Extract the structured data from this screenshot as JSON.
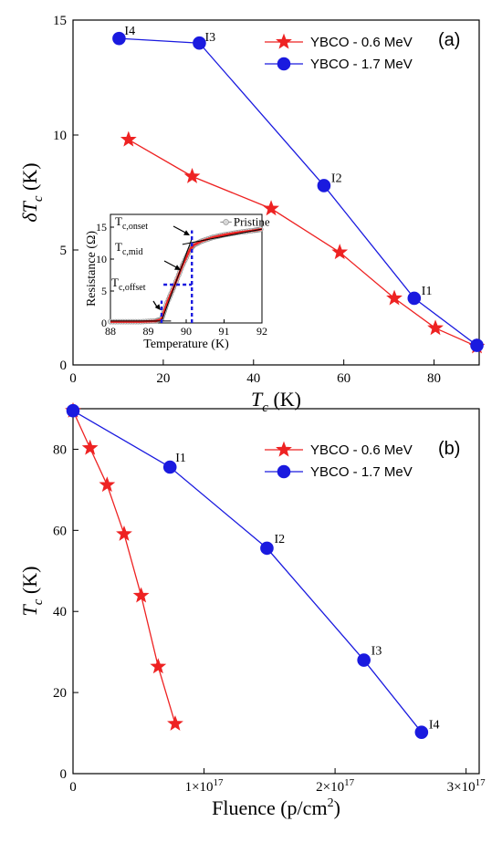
{
  "colors": {
    "red": "#ee2222",
    "blue": "#1a1adf",
    "inset_black": "#000000",
    "inset_blue": "#1a1adf",
    "inset_red": "#ee2222",
    "inset_gray": "#888888"
  },
  "chart_data": [
    {
      "id": "a",
      "type": "line",
      "panel_label": "(a)",
      "xlabel": {
        "main": "T",
        "sub": "c",
        "unit": " (K)"
      },
      "ylabel": {
        "prefix": "δ",
        "main": "T",
        "sub": "c",
        "unit": " (K)"
      },
      "xlim": [
        0,
        90
      ],
      "ylim": [
        0,
        15
      ],
      "x_ticks": [
        0,
        20,
        40,
        60,
        80
      ],
      "y_ticks": [
        0,
        5,
        10,
        15
      ],
      "legend_position": "top-right",
      "series": [
        {
          "name": "YBCO - 0.6 MeV",
          "color": "red",
          "marker": "star",
          "x": [
            12.3,
            26.4,
            43.9,
            59.1,
            71.2,
            80.3,
            89.5
          ],
          "y": [
            9.8,
            8.2,
            6.8,
            4.9,
            2.9,
            1.6,
            0.8
          ],
          "point_labels": [
            "",
            "",
            "",
            "",
            "",
            "",
            ""
          ]
        },
        {
          "name": "YBCO - 1.7 MeV",
          "color": "blue",
          "marker": "circle",
          "x": [
            10.2,
            28.0,
            55.6,
            75.6,
            89.5
          ],
          "y": [
            14.2,
            14.0,
            7.8,
            2.9,
            0.85
          ],
          "point_labels": [
            "I4",
            "I3",
            "I2",
            "I1",
            ""
          ]
        }
      ],
      "inset": {
        "type": "line",
        "xlabel": "Temperature (K)",
        "ylabel": "Resistance (Ω)",
        "xlim": [
          88,
          92
        ],
        "ylim": [
          0,
          17
        ],
        "x_ticks": [
          88,
          89,
          90,
          91,
          92
        ],
        "y_ticks": [
          0,
          5,
          10,
          15
        ],
        "legend": "Pristine",
        "annotations": [
          {
            "main": "T",
            "sub": "c,onset"
          },
          {
            "main": "T",
            "sub": "c,mid"
          },
          {
            "main": "T",
            "sub": "c,offset"
          }
        ],
        "onset_T": 90.15,
        "mid_T": 89.75,
        "offset_T": 89.35,
        "onset_R": 12.0,
        "mid_R": 6.0,
        "curve": {
          "x": [
            88.0,
            88.4,
            88.8,
            89.2,
            89.35,
            89.5,
            89.7,
            89.9,
            90.1,
            90.2,
            90.4,
            90.7,
            91.0,
            91.4,
            91.8,
            92.0
          ],
          "y": [
            0.2,
            0.2,
            0.2,
            0.3,
            0.6,
            3.2,
            6.0,
            9.0,
            11.5,
            12.2,
            12.8,
            13.4,
            13.8,
            14.2,
            14.5,
            14.7
          ]
        }
      }
    },
    {
      "id": "b",
      "type": "line",
      "panel_label": "(b)",
      "xlabel": {
        "main": "Fluence (p/cm",
        "sup": "2",
        "unit": ")"
      },
      "ylabel": {
        "prefix": "",
        "main": "T",
        "sub": "c",
        "unit": " (K)"
      },
      "xlim": [
        0,
        3.1
      ],
      "ylim": [
        0,
        90
      ],
      "x_ticks": [
        1,
        2,
        3
      ],
      "x_tick_labels": [
        {
          "base": "1×10",
          "exp": "17"
        },
        {
          "base": "2×10",
          "exp": "17"
        },
        {
          "base": "3×10",
          "exp": "17"
        }
      ],
      "x_tick_label_zero": "0",
      "y_ticks": [
        0,
        20,
        40,
        60,
        80
      ],
      "legend_position": "top-right",
      "series": [
        {
          "name": "YBCO - 0.6 MeV",
          "color": "red",
          "marker": "star",
          "x": [
            0.0,
            0.13,
            0.26,
            0.39,
            0.52,
            0.65,
            0.78
          ],
          "y": [
            89.5,
            80.3,
            71.2,
            59.1,
            43.9,
            26.4,
            12.3
          ],
          "point_labels": [
            "",
            "",
            "",
            "",
            "",
            "",
            ""
          ]
        },
        {
          "name": "YBCO - 1.7 MeV",
          "color": "blue",
          "marker": "circle",
          "x": [
            0.0,
            0.74,
            1.48,
            2.22,
            2.66
          ],
          "y": [
            89.5,
            75.6,
            55.6,
            28.0,
            10.2
          ],
          "point_labels": [
            "",
            "I1",
            "I2",
            "I3",
            "I4"
          ]
        }
      ]
    }
  ]
}
